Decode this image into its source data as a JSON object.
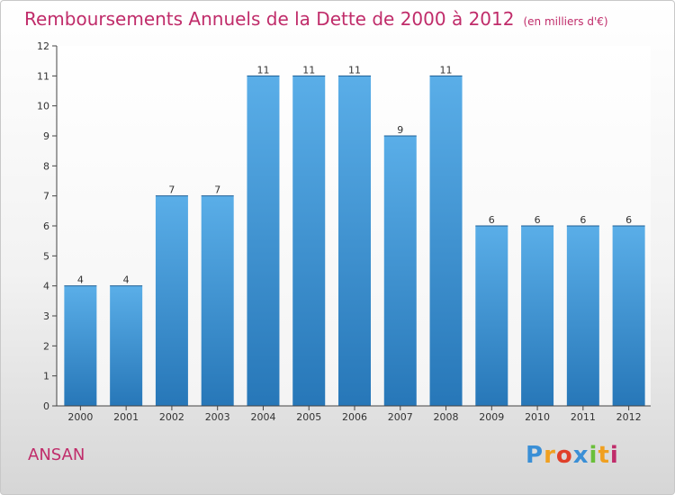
{
  "title": "Remboursements Annuels de la Dette de 2000 à 2012",
  "unit_note": "(en milliers d'€)",
  "commune": "ANSAN",
  "logo_text": "Proxiti",
  "colors": {
    "title": "#c02c6a",
    "bar_top": "#5aaee8",
    "bar_bottom": "#2777b8",
    "axis": "#444444",
    "grid": "#e6e6e6"
  },
  "chart_data": {
    "type": "bar",
    "categories": [
      "2000",
      "2001",
      "2002",
      "2003",
      "2004",
      "2005",
      "2006",
      "2007",
      "2008",
      "2009",
      "2010",
      "2011",
      "2012"
    ],
    "values": [
      4,
      4,
      7,
      7,
      11,
      11,
      11,
      9,
      11,
      6,
      6,
      6,
      6
    ],
    "data_labels": [
      "4",
      "4",
      "7",
      "7",
      "11",
      "11",
      "11",
      "9",
      "11",
      "6",
      "6",
      "6",
      "6"
    ],
    "ylim": [
      0,
      12
    ],
    "yticks": [
      0,
      1,
      2,
      3,
      4,
      5,
      6,
      7,
      8,
      9,
      10,
      11,
      12
    ],
    "grid": false,
    "legend": "none"
  }
}
